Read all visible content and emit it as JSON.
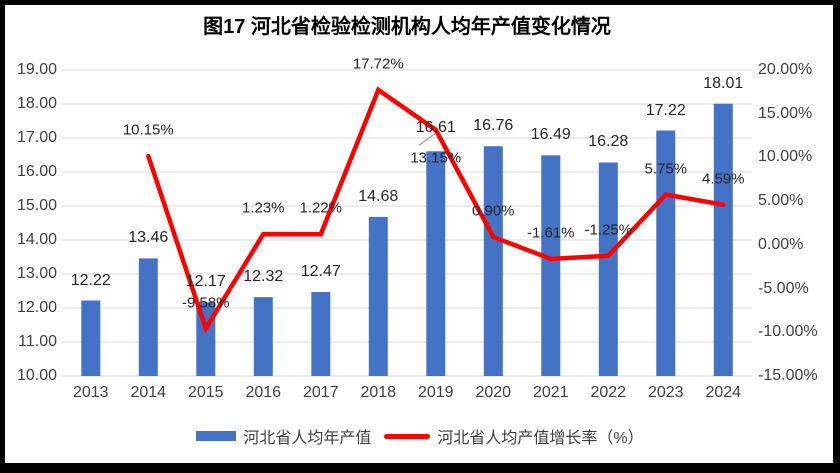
{
  "chart_data": {
    "type": "combo-bar-line",
    "title": "图17 河北省检验检测机构人均年产值变化情况",
    "categories": [
      "2013",
      "2014",
      "2015",
      "2016",
      "2017",
      "2018",
      "2019",
      "2020",
      "2021",
      "2022",
      "2023",
      "2024"
    ],
    "series": [
      {
        "name": "河北省人均年产值",
        "type": "bar",
        "axis": "left",
        "color": "#4472C4",
        "values": [
          12.22,
          13.46,
          12.17,
          12.32,
          12.47,
          14.68,
          16.61,
          16.76,
          16.49,
          16.28,
          17.22,
          18.01
        ],
        "labels": [
          "12.22",
          "13.46",
          "12.17",
          "12.32",
          "12.47",
          "14.68",
          "16.61",
          "16.76",
          "16.49",
          "16.28",
          "17.22",
          "18.01"
        ]
      },
      {
        "name": "河北省人均产值增长率（%）",
        "type": "line",
        "axis": "right",
        "color": "#FF0000",
        "values": [
          null,
          10.15,
          -9.58,
          1.23,
          1.22,
          17.72,
          13.15,
          0.9,
          -1.61,
          -1.25,
          5.75,
          4.59
        ],
        "labels": [
          null,
          "10.15%",
          "-9.58%",
          "1.23%",
          "1.22%",
          "17.72%",
          "13.15%",
          "0.90%",
          "-1.61%",
          "-1.25%",
          "5.75%",
          "4.59%"
        ]
      }
    ],
    "left_axis": {
      "min": 10,
      "max": 19,
      "step": 1,
      "tick_labels": [
        "19.00",
        "18.00",
        "17.00",
        "16.00",
        "15.00",
        "14.00",
        "13.00",
        "12.00",
        "11.00",
        "10.00"
      ]
    },
    "right_axis": {
      "min": -15,
      "max": 20,
      "step": 5,
      "tick_labels": [
        "20.00%",
        "15.00%",
        "10.00%",
        "5.00%",
        "0.00%",
        "-5.00%",
        "-10.00%",
        "-15.00%"
      ]
    },
    "grid": "horizontal",
    "legend_position": "bottom",
    "colors": {
      "bar": "#4472C4",
      "line": "#FF0000",
      "grid": "#D9D9D9",
      "leader": "#A6A6A6",
      "axis_text": "#3F3F3F",
      "label_text": "#262626"
    },
    "annotations": {
      "growth_label_below_index": 6,
      "moved_bar_label_index": 6
    }
  }
}
